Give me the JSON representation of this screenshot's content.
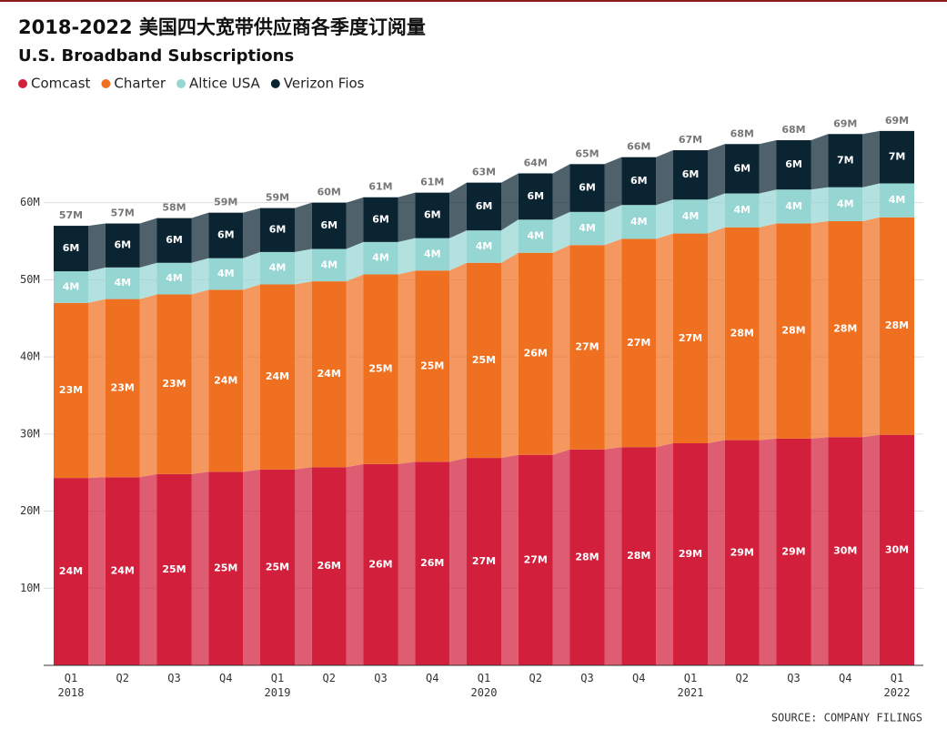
{
  "chart_data": {
    "type": "stacked_bar",
    "title": "2018-2022 美国四大宽带供应商各季度订阅量",
    "subtitle": "U.S. Broadband Subscriptions",
    "source": "SOURCE: COMPANY FILINGS",
    "categories": [
      "Q1 2018",
      "Q2",
      "Q3",
      "Q4",
      "Q1 2019",
      "Q2",
      "Q3",
      "Q4",
      "Q1 2020",
      "Q2",
      "Q3",
      "Q4",
      "Q1 2021",
      "Q2",
      "Q3",
      "Q4",
      "Q1 2022"
    ],
    "series": [
      {
        "name": "Comcast",
        "color": "#d21f3c",
        "values": [
          24.3,
          24.4,
          24.8,
          25.1,
          25.4,
          25.7,
          26.1,
          26.4,
          26.9,
          27.3,
          28.0,
          28.3,
          28.8,
          29.2,
          29.4,
          29.6,
          29.9
        ],
        "value_labels": [
          "24M",
          "24M",
          "25M",
          "25M",
          "25M",
          "26M",
          "26M",
          "26M",
          "27M",
          "27M",
          "28M",
          "28M",
          "29M",
          "29M",
          "29M",
          "30M",
          "30M"
        ]
      },
      {
        "name": "Charter",
        "color": "#f07022",
        "values": [
          22.7,
          23.1,
          23.3,
          23.6,
          24.0,
          24.1,
          24.6,
          24.8,
          25.3,
          26.2,
          26.5,
          27.0,
          27.2,
          27.6,
          27.9,
          28.0,
          28.2
        ],
        "value_labels": [
          "23M",
          "23M",
          "23M",
          "24M",
          "24M",
          "24M",
          "25M",
          "25M",
          "25M",
          "26M",
          "27M",
          "27M",
          "27M",
          "28M",
          "28M",
          "28M",
          "28M"
        ]
      },
      {
        "name": "Altice USA",
        "color": "#95d5d2",
        "values": [
          4.1,
          4.1,
          4.1,
          4.1,
          4.2,
          4.2,
          4.2,
          4.2,
          4.2,
          4.3,
          4.3,
          4.4,
          4.4,
          4.4,
          4.4,
          4.4,
          4.4
        ],
        "value_labels": [
          "4M",
          "4M",
          "4M",
          "4M",
          "4M",
          "4M",
          "4M",
          "4M",
          "4M",
          "4M",
          "4M",
          "4M",
          "4M",
          "4M",
          "4M",
          "4M",
          "4M"
        ]
      },
      {
        "name": "Verizon Fios",
        "color": "#0b2432",
        "values": [
          5.9,
          5.7,
          5.8,
          5.9,
          5.7,
          6.0,
          5.8,
          5.9,
          6.2,
          6.0,
          6.2,
          6.2,
          6.4,
          6.4,
          6.4,
          6.9,
          6.8
        ],
        "value_labels": [
          "6M",
          "6M",
          "6M",
          "6M",
          "6M",
          "6M",
          "6M",
          "6M",
          "6M",
          "6M",
          "6M",
          "6M",
          "6M",
          "6M",
          "6M",
          "7M",
          "7M"
        ]
      }
    ],
    "totals": {
      "values": [
        57,
        57,
        58,
        59,
        59,
        60,
        61,
        61,
        63,
        64,
        65,
        66,
        67,
        68,
        68,
        69,
        69
      ],
      "value_labels": [
        "57M",
        "57M",
        "58M",
        "59M",
        "59M",
        "60M",
        "61M",
        "61M",
        "63M",
        "64M",
        "65M",
        "66M",
        "67M",
        "68M",
        "68M",
        "69M",
        "69M"
      ]
    },
    "ylim": [
      0,
      72
    ],
    "yticks": [
      {
        "value": 10,
        "label": "10M"
      },
      {
        "value": 20,
        "label": "20M"
      },
      {
        "value": 30,
        "label": "30M"
      },
      {
        "value": 40,
        "label": "40M"
      },
      {
        "value": 50,
        "label": "50M"
      },
      {
        "value": 60,
        "label": "60M"
      }
    ],
    "grid": true,
    "legend": "top-left"
  }
}
